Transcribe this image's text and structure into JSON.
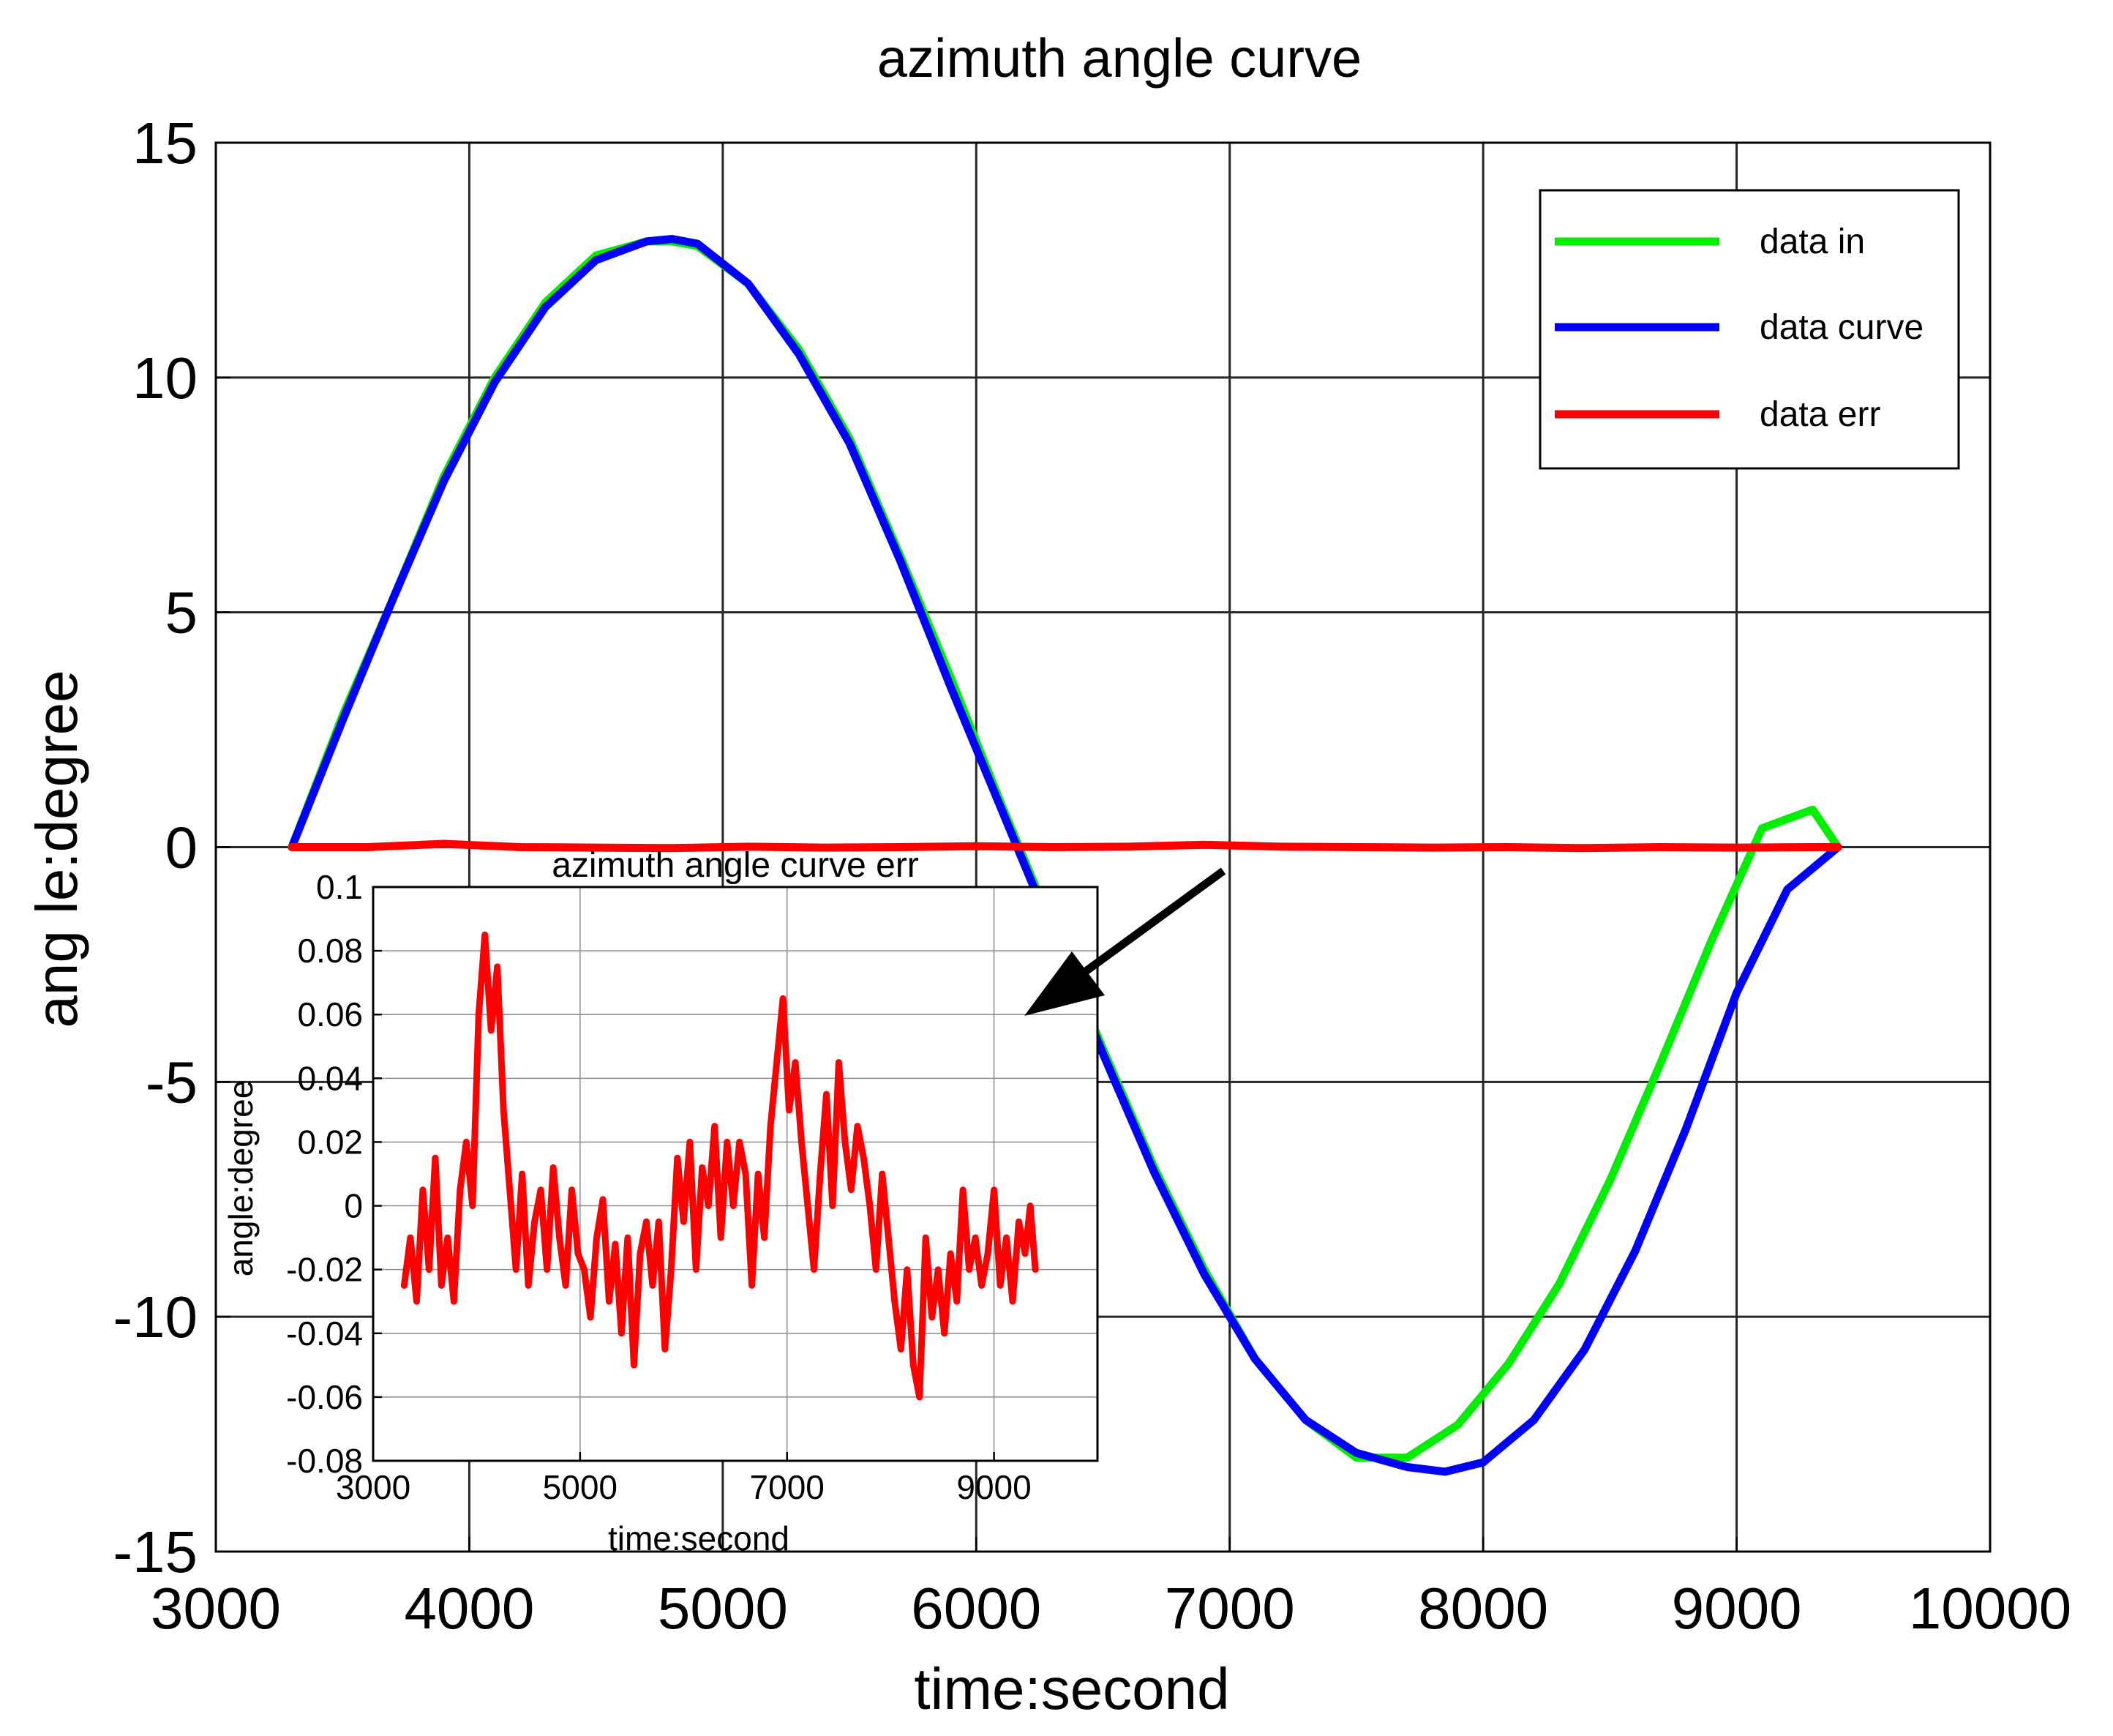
{
  "chart_data": [
    {
      "type": "line",
      "title": "azimuth angle curve",
      "xlabel": "time:second",
      "ylabel": "ang le:degree",
      "xlim": [
        3000,
        10000
      ],
      "ylim": [
        -15,
        15
      ],
      "xticks": [
        3000,
        4000,
        5000,
        6000,
        7000,
        8000,
        9000,
        10000
      ],
      "yticks": [
        15,
        10,
        5,
        0,
        -5,
        -10,
        -15
      ],
      "xtick_labels": [
        "3000",
        "4000",
        "5000",
        "6000",
        "7000",
        "8000",
        "9000",
        "10000"
      ],
      "ytick_labels": [
        "15",
        "10",
        "5",
        "0",
        "-5",
        "-10",
        "-15"
      ],
      "grid": true,
      "legend_position": "top-right",
      "series": [
        {
          "name": "data in",
          "color": "#00ee00",
          "x": [
            3300,
            3500,
            3700,
            3900,
            4100,
            4300,
            4500,
            4700,
            4800,
            4900,
            5100,
            5300,
            5500,
            5700,
            5900,
            6100,
            6300,
            6500,
            6700,
            6900,
            7100,
            7300,
            7500,
            7700,
            7900,
            8100,
            8300,
            8500,
            8700,
            8900,
            9100,
            9300,
            9400
          ],
          "y": [
            0.0,
            2.8,
            5.3,
            7.9,
            10.0,
            11.6,
            12.6,
            12.9,
            12.9,
            12.8,
            12.0,
            10.6,
            8.7,
            6.2,
            3.6,
            0.9,
            -1.7,
            -4.3,
            -6.8,
            -9.0,
            -10.9,
            -12.2,
            -13.0,
            -13.0,
            -12.3,
            -11.0,
            -9.3,
            -7.1,
            -4.6,
            -2.0,
            0.4,
            0.8,
            0.0
          ]
        },
        {
          "name": "data curve",
          "color": "#0000ff",
          "x": [
            3300,
            3500,
            3700,
            3900,
            4100,
            4300,
            4500,
            4700,
            4800,
            4900,
            5100,
            5300,
            5500,
            5700,
            5900,
            6100,
            6300,
            6500,
            6700,
            6900,
            7100,
            7300,
            7500,
            7700,
            7850,
            8000,
            8200,
            8400,
            8600,
            8800,
            9000,
            9200,
            9400
          ],
          "y": [
            0.0,
            2.7,
            5.3,
            7.8,
            9.9,
            11.5,
            12.5,
            12.9,
            12.95,
            12.85,
            12.0,
            10.5,
            8.6,
            6.1,
            3.4,
            0.8,
            -1.8,
            -4.4,
            -6.9,
            -9.1,
            -10.9,
            -12.2,
            -12.9,
            -13.2,
            -13.3,
            -13.1,
            -12.2,
            -10.7,
            -8.6,
            -6.0,
            -3.1,
            -0.9,
            0.0
          ]
        },
        {
          "name": "data err",
          "color": "#ff0000",
          "x": [
            3300,
            3600,
            3900,
            4200,
            4500,
            4800,
            5100,
            5400,
            5700,
            6000,
            6300,
            6600,
            6900,
            7200,
            7500,
            7800,
            8100,
            8400,
            8700,
            9000,
            9300,
            9400
          ],
          "y": [
            0.0,
            0.0,
            0.07,
            0.0,
            -0.01,
            -0.02,
            0.01,
            -0.01,
            0.0,
            0.02,
            0.0,
            0.01,
            0.05,
            0.01,
            0.0,
            -0.01,
            0.0,
            -0.02,
            0.0,
            -0.01,
            0.0,
            0.0
          ]
        }
      ]
    },
    {
      "type": "line",
      "title": "azimuth angle curve err",
      "xlabel": "time:second",
      "ylabel": "angle:degree",
      "xlim": [
        3000,
        10000
      ],
      "ylim": [
        -0.08,
        0.1
      ],
      "xtick_labels": [
        "3000",
        "5000",
        "7000",
        "9000"
      ],
      "xticks": [
        3000,
        5000,
        7000,
        9000
      ],
      "yticks": [
        0.1,
        0.08,
        0.06,
        0.04,
        0.02,
        0,
        -0.02,
        -0.04,
        -0.06,
        -0.08
      ],
      "ytick_labels": [
        "0.1",
        "0.08",
        "0.06",
        "0.04",
        "0.02",
        "0",
        "-0.02",
        "-0.04",
        "-0.06",
        "-0.08"
      ],
      "grid": true,
      "series": [
        {
          "name": "data err",
          "color": "#ff0000",
          "x": [
            3300,
            3360,
            3420,
            3480,
            3540,
            3600,
            3660,
            3720,
            3780,
            3840,
            3900,
            3960,
            4020,
            4080,
            4140,
            4200,
            4260,
            4320,
            4380,
            4440,
            4500,
            4560,
            4620,
            4680,
            4740,
            4800,
            4860,
            4920,
            4980,
            5040,
            5100,
            5160,
            5220,
            5280,
            5340,
            5400,
            5460,
            5520,
            5580,
            5640,
            5700,
            5760,
            5820,
            5880,
            5940,
            6000,
            6060,
            6120,
            6180,
            6240,
            6300,
            6360,
            6420,
            6480,
            6540,
            6600,
            6660,
            6720,
            6780,
            6840,
            6900,
            6960,
            7020,
            7080,
            7140,
            7200,
            7260,
            7320,
            7380,
            7440,
            7500,
            7560,
            7620,
            7680,
            7740,
            7800,
            7860,
            7920,
            7980,
            8040,
            8100,
            8160,
            8220,
            8280,
            8340,
            8400,
            8460,
            8520,
            8580,
            8640,
            8700,
            8760,
            8820,
            8880,
            8940,
            9000,
            9060,
            9120,
            9180,
            9240,
            9300,
            9350,
            9400
          ],
          "y": [
            -0.025,
            -0.01,
            -0.03,
            0.005,
            -0.02,
            0.015,
            -0.025,
            -0.01,
            -0.03,
            0.005,
            0.02,
            0.0,
            0.06,
            0.085,
            0.055,
            0.075,
            0.03,
            0.005,
            -0.02,
            0.01,
            -0.025,
            -0.005,
            0.005,
            -0.02,
            0.012,
            -0.01,
            -0.025,
            0.005,
            -0.015,
            -0.02,
            -0.035,
            -0.01,
            0.002,
            -0.03,
            -0.012,
            -0.04,
            -0.01,
            -0.05,
            -0.015,
            -0.005,
            -0.025,
            -0.005,
            -0.045,
            -0.02,
            0.015,
            -0.005,
            0.02,
            -0.02,
            0.012,
            0.0,
            0.025,
            -0.01,
            0.02,
            0.0,
            0.02,
            0.01,
            -0.025,
            0.01,
            -0.01,
            0.025,
            0.045,
            0.065,
            0.03,
            0.045,
            0.02,
            0.0,
            -0.02,
            0.01,
            0.035,
            0.0,
            0.045,
            0.02,
            0.005,
            0.025,
            0.015,
            0.0,
            -0.02,
            0.01,
            -0.01,
            -0.03,
            -0.045,
            -0.02,
            -0.05,
            -0.06,
            -0.01,
            -0.035,
            -0.02,
            -0.04,
            -0.015,
            -0.03,
            0.005,
            -0.02,
            -0.01,
            -0.025,
            -0.015,
            0.005,
            -0.025,
            -0.01,
            -0.03,
            -0.005,
            -0.015,
            0.0,
            -0.02
          ]
        }
      ]
    }
  ]
}
